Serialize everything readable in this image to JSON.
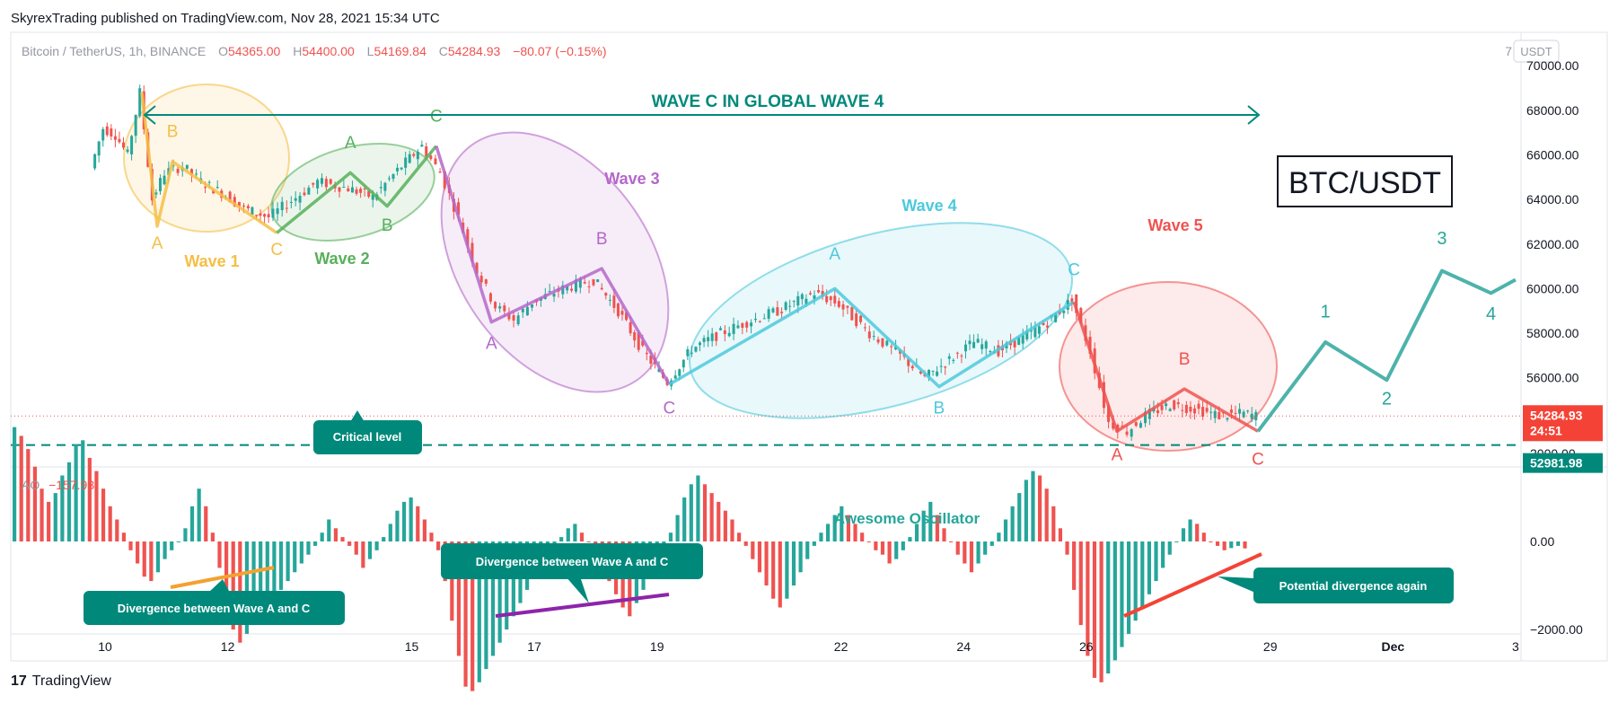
{
  "header": {
    "published_text": "SkyrexTrading published on TradingView.com, Nov 28, 2021 15:34 UTC"
  },
  "footer": {
    "brand": "TradingView",
    "logo_glyph": "17"
  },
  "symbol_info": {
    "name": "Bitcoin / TetherUS, 1h, BINANCE",
    "open_label": "O",
    "open": "54365.00",
    "high_label": "H",
    "high": "54400.00",
    "low_label": "L",
    "low": "54169.84",
    "close_label": "C",
    "close": "54284.93",
    "change": "−80.07 (−0.15%)",
    "currency": "USDT",
    "axis_top_glyph": "7"
  },
  "colors": {
    "up": "#26a69a",
    "down": "#ef5350",
    "wave1": "#f4bf45",
    "wave2": "#57b05b",
    "wave3": "#b567c9",
    "wave4": "#4dc9dc",
    "wave5": "#ef5350",
    "projection": "#4db3ab",
    "teal_dark": "#00897b",
    "critical": "#00897b"
  },
  "chart_data": [
    {
      "type": "candlestick",
      "x_tick_labels": [
        "10",
        "12",
        "15",
        "17",
        "19",
        "22",
        "24",
        "26",
        "29",
        "Dec",
        "3"
      ],
      "y_tick_labels": [
        "70000.00",
        "68000.00",
        "66000.00",
        "64000.00",
        "62000.00",
        "60000.00",
        "58000.00",
        "56000.00"
      ],
      "ylim": [
        52000,
        71500
      ],
      "last_price_label": "54284.93",
      "countdown_label": "24:51",
      "critical_price_label": "52981.98",
      "critical_level": 52981.98,
      "last_price": 54284.93,
      "path_points": [
        [
          10.4,
          66000
        ],
        [
          10.6,
          68800
        ],
        [
          10.8,
          64000
        ],
        [
          11.0,
          65200
        ],
        [
          11.3,
          65500
        ],
        [
          11.6,
          64800
        ],
        [
          12.0,
          64200
        ],
        [
          12.3,
          63600
        ],
        [
          12.7,
          63200
        ],
        [
          13.0,
          63800
        ],
        [
          13.5,
          64800
        ],
        [
          14.0,
          64500
        ],
        [
          14.4,
          64100
        ],
        [
          14.8,
          65300
        ],
        [
          15.2,
          66400
        ],
        [
          15.5,
          65200
        ],
        [
          15.8,
          63200
        ],
        [
          16.1,
          60800
        ],
        [
          16.4,
          59200
        ],
        [
          16.7,
          58600
        ],
        [
          17.0,
          59400
        ],
        [
          17.5,
          60000
        ],
        [
          18.0,
          60400
        ],
        [
          18.4,
          59000
        ],
        [
          18.8,
          57200
        ],
        [
          19.2,
          55800
        ],
        [
          19.6,
          57300
        ],
        [
          20.0,
          57900
        ],
        [
          20.5,
          58500
        ],
        [
          21.0,
          59000
        ],
        [
          21.6,
          59800
        ],
        [
          22.0,
          59300
        ],
        [
          22.5,
          58000
        ],
        [
          23.0,
          57000
        ],
        [
          23.4,
          56000
        ],
        [
          23.8,
          56800
        ],
        [
          24.2,
          57600
        ],
        [
          24.6,
          57200
        ],
        [
          25.0,
          57800
        ],
        [
          25.4,
          58500
        ],
        [
          25.8,
          59500
        ],
        [
          26.1,
          57200
        ],
        [
          26.4,
          54000
        ],
        [
          26.7,
          53600
        ],
        [
          27.0,
          54300
        ],
        [
          27.4,
          54800
        ],
        [
          27.8,
          54600
        ],
        [
          28.2,
          54300
        ],
        [
          28.6,
          54400
        ],
        [
          28.8,
          54300
        ]
      ],
      "waves": [
        {
          "label": "Wave 1",
          "color_key": "wave1",
          "points": [
            [
              10.6,
              68800
            ],
            [
              10.85,
              62800
            ],
            [
              11.1,
              65700
            ],
            [
              12.8,
              62500
            ]
          ],
          "pivots": [
            {
              "t": "A",
              "x": 10.85,
              "y": 61800
            },
            {
              "t": "B",
              "x": 11.1,
              "y": 66800
            },
            {
              "t": "C",
              "x": 12.8,
              "y": 61500
            }
          ]
        },
        {
          "label": "Wave 2",
          "color_key": "wave2",
          "points": [
            [
              12.8,
              62500
            ],
            [
              14.0,
              65200
            ],
            [
              14.6,
              63700
            ],
            [
              15.4,
              66400
            ]
          ],
          "pivots": [
            {
              "t": "A",
              "x": 14.0,
              "y": 66300
            },
            {
              "t": "B",
              "x": 14.6,
              "y": 62600
            },
            {
              "t": "C",
              "x": 15.4,
              "y": 67500
            }
          ]
        },
        {
          "label": "Wave 3",
          "color_key": "wave3",
          "points": [
            [
              15.4,
              66400
            ],
            [
              16.3,
              58500
            ],
            [
              18.1,
              60900
            ],
            [
              19.2,
              55700
            ]
          ],
          "pivots": [
            {
              "t": "A",
              "x": 16.3,
              "y": 57300
            },
            {
              "t": "B",
              "x": 18.1,
              "y": 62000
            },
            {
              "t": "C",
              "x": 19.2,
              "y": 54400
            }
          ]
        },
        {
          "label": "Wave 4",
          "color_key": "wave4",
          "points": [
            [
              19.2,
              55700
            ],
            [
              21.9,
              60000
            ],
            [
              23.6,
              55600
            ],
            [
              25.8,
              59400
            ]
          ],
          "pivots": [
            {
              "t": "A",
              "x": 21.9,
              "y": 61300
            },
            {
              "t": "B",
              "x": 23.6,
              "y": 54400
            },
            {
              "t": "C",
              "x": 25.8,
              "y": 60600
            }
          ]
        },
        {
          "label": "Wave 5",
          "color_key": "wave5",
          "points": [
            [
              25.8,
              59400
            ],
            [
              26.5,
              53600
            ],
            [
              27.6,
              55500
            ],
            [
              28.8,
              53600
            ]
          ],
          "pivots": [
            {
              "t": "A",
              "x": 26.5,
              "y": 52300
            },
            {
              "t": "B",
              "x": 27.6,
              "y": 56600
            },
            {
              "t": "C",
              "x": 28.8,
              "y": 52100
            }
          ]
        }
      ],
      "projection": {
        "points": [
          [
            28.8,
            53600
          ],
          [
            29.9,
            57600
          ],
          [
            30.9,
            55900
          ],
          [
            31.8,
            60800
          ],
          [
            32.6,
            59800
          ],
          [
            33.0,
            60400
          ]
        ],
        "labels": [
          {
            "t": "1",
            "x": 29.9,
            "y": 58700
          },
          {
            "t": "2",
            "x": 30.9,
            "y": 54800
          },
          {
            "t": "3",
            "x": 31.8,
            "y": 62000
          },
          {
            "t": "4",
            "x": 32.6,
            "y": 58600
          }
        ]
      },
      "global_label": "WAVE C IN GLOBAL WAVE 4",
      "instrument_label": "BTC/USDT",
      "critical_label": "Critical level"
    },
    {
      "type": "histogram",
      "indicator": "AO",
      "indicator_value": "−157.93",
      "title": "Awesome Oscillator",
      "y_tick_labels": [
        "2000.00",
        "0.00",
        "−2000.00"
      ],
      "ylim": [
        -3600,
        3000
      ],
      "values": [
        2600,
        2400,
        2100,
        1700,
        1200,
        900,
        1100,
        1500,
        1800,
        2200,
        2300,
        1900,
        1600,
        1200,
        800,
        500,
        200,
        -200,
        -500,
        -800,
        -900,
        -700,
        -400,
        -200,
        0,
        300,
        800,
        1200,
        800,
        200,
        -600,
        -1400,
        -2000,
        -2300,
        -2100,
        -1900,
        -1700,
        -1500,
        -1300,
        -1100,
        -900,
        -700,
        -500,
        -300,
        -100,
        200,
        500,
        300,
        100,
        -100,
        -300,
        -600,
        -400,
        -200,
        100,
        400,
        700,
        900,
        1000,
        800,
        500,
        200,
        -200,
        -900,
        -1800,
        -2600,
        -3300,
        -3400,
        -3200,
        -2900,
        -2600,
        -2300,
        -2000,
        -1700,
        -1400,
        -1100,
        -800,
        -500,
        -300,
        -100,
        100,
        300,
        400,
        200,
        0,
        -300,
        -600,
        -900,
        -1200,
        -1500,
        -1700,
        -1400,
        -1100,
        -800,
        -500,
        -200,
        200,
        600,
        1000,
        1300,
        1500,
        1300,
        1100,
        900,
        700,
        500,
        200,
        -100,
        -400,
        -700,
        -1000,
        -1300,
        -1500,
        -1300,
        -1000,
        -700,
        -400,
        -100,
        200,
        400,
        600,
        800,
        600,
        400,
        200,
        0,
        -200,
        -300,
        -500,
        -400,
        -200,
        100,
        400,
        700,
        900,
        600,
        300,
        0,
        -300,
        -500,
        -700,
        -500,
        -300,
        -100,
        200,
        500,
        800,
        1100,
        1400,
        1600,
        1500,
        1200,
        800,
        300,
        -300,
        -1100,
        -1900,
        -2600,
        -3100,
        -3200,
        -3000,
        -2700,
        -2400,
        -2100,
        -1800,
        -1500,
        -1200,
        -900,
        -600,
        -300,
        0,
        300,
        500,
        400,
        200,
        0,
        -100,
        -200,
        -150,
        -100,
        -157
      ]
    }
  ],
  "annotations": {
    "div1": "Divergence between Wave A and C",
    "div2": "Divergence between Wave A and C",
    "div3": "Potential divergence again"
  }
}
